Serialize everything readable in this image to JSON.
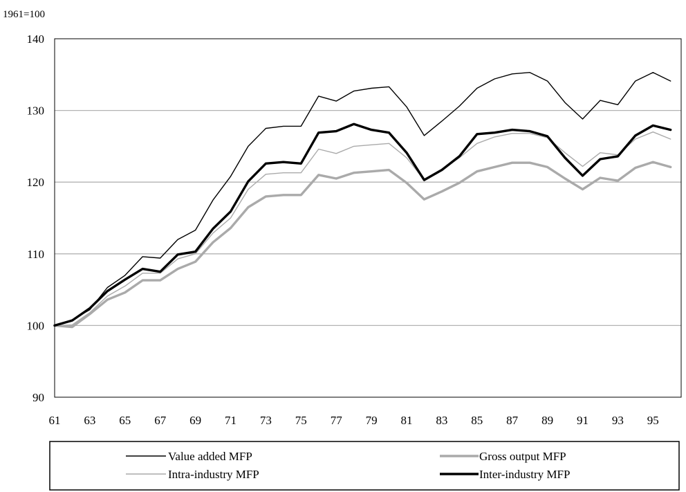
{
  "chart_data": {
    "type": "line",
    "unit_label": "1961=100",
    "ylim": [
      90,
      140
    ],
    "y_ticks": [
      "90",
      "100",
      "110",
      "120",
      "130",
      "140"
    ],
    "x": [
      61,
      62,
      63,
      64,
      65,
      66,
      67,
      68,
      69,
      70,
      71,
      72,
      73,
      74,
      75,
      76,
      77,
      78,
      79,
      80,
      81,
      82,
      83,
      84,
      85,
      86,
      87,
      88,
      89,
      90,
      91,
      92,
      93,
      94,
      95,
      96
    ],
    "x_tick_labels": [
      "61",
      "63",
      "65",
      "67",
      "69",
      "71",
      "73",
      "75",
      "77",
      "79",
      "81",
      "83",
      "85",
      "87",
      "89",
      "91",
      "93",
      "95"
    ],
    "grid": "horizontal",
    "legend": "bottom",
    "series": [
      {
        "name": "Value added MFP",
        "color": "#000000",
        "style": "thin",
        "values": [
          100.0,
          100.8,
          102.2,
          105.3,
          107.0,
          109.6,
          109.4,
          112.0,
          113.3,
          117.5,
          120.8,
          125.0,
          127.5,
          127.8,
          127.8,
          132.0,
          131.3,
          132.7,
          133.1,
          133.3,
          130.5,
          126.5,
          128.5,
          130.6,
          133.1,
          134.4,
          135.1,
          135.3,
          134.1,
          131.1,
          128.8,
          131.4,
          130.8,
          134.1,
          135.3,
          134.1
        ]
      },
      {
        "name": "Gross output MFP",
        "color": "#aaaaaa",
        "style": "thick",
        "values": [
          100.0,
          99.8,
          101.6,
          103.6,
          104.6,
          106.3,
          106.3,
          107.9,
          108.9,
          111.6,
          113.6,
          116.5,
          118.0,
          118.2,
          118.2,
          121.0,
          120.5,
          121.3,
          121.5,
          121.7,
          119.9,
          117.6,
          118.7,
          119.9,
          121.5,
          122.1,
          122.7,
          122.7,
          122.1,
          120.5,
          119.0,
          120.6,
          120.2,
          122.0,
          122.8,
          122.1
        ]
      },
      {
        "name": "Intra-industry MFP",
        "color": "#aaaaaa",
        "style": "thin",
        "values": [
          100.0,
          100.1,
          101.8,
          104.1,
          105.5,
          107.3,
          107.3,
          109.3,
          110.0,
          112.9,
          115.0,
          119.0,
          121.1,
          121.3,
          121.3,
          124.6,
          124.0,
          125.0,
          125.2,
          125.4,
          123.4,
          120.3,
          121.8,
          123.4,
          125.4,
          126.3,
          126.8,
          126.8,
          126.2,
          124.1,
          122.2,
          124.1,
          123.8,
          126.0,
          127.0,
          126.0
        ]
      },
      {
        "name": "Inter-industry MFP",
        "color": "#000000",
        "style": "thick",
        "values": [
          100.0,
          100.7,
          102.4,
          104.8,
          106.4,
          107.9,
          107.5,
          109.9,
          110.3,
          113.5,
          115.9,
          120.1,
          122.6,
          122.8,
          122.6,
          126.9,
          127.1,
          128.1,
          127.3,
          126.9,
          124.1,
          120.3,
          121.7,
          123.6,
          126.7,
          126.9,
          127.3,
          127.1,
          126.4,
          123.4,
          120.9,
          123.2,
          123.6,
          126.5,
          127.9,
          127.3
        ]
      }
    ]
  }
}
